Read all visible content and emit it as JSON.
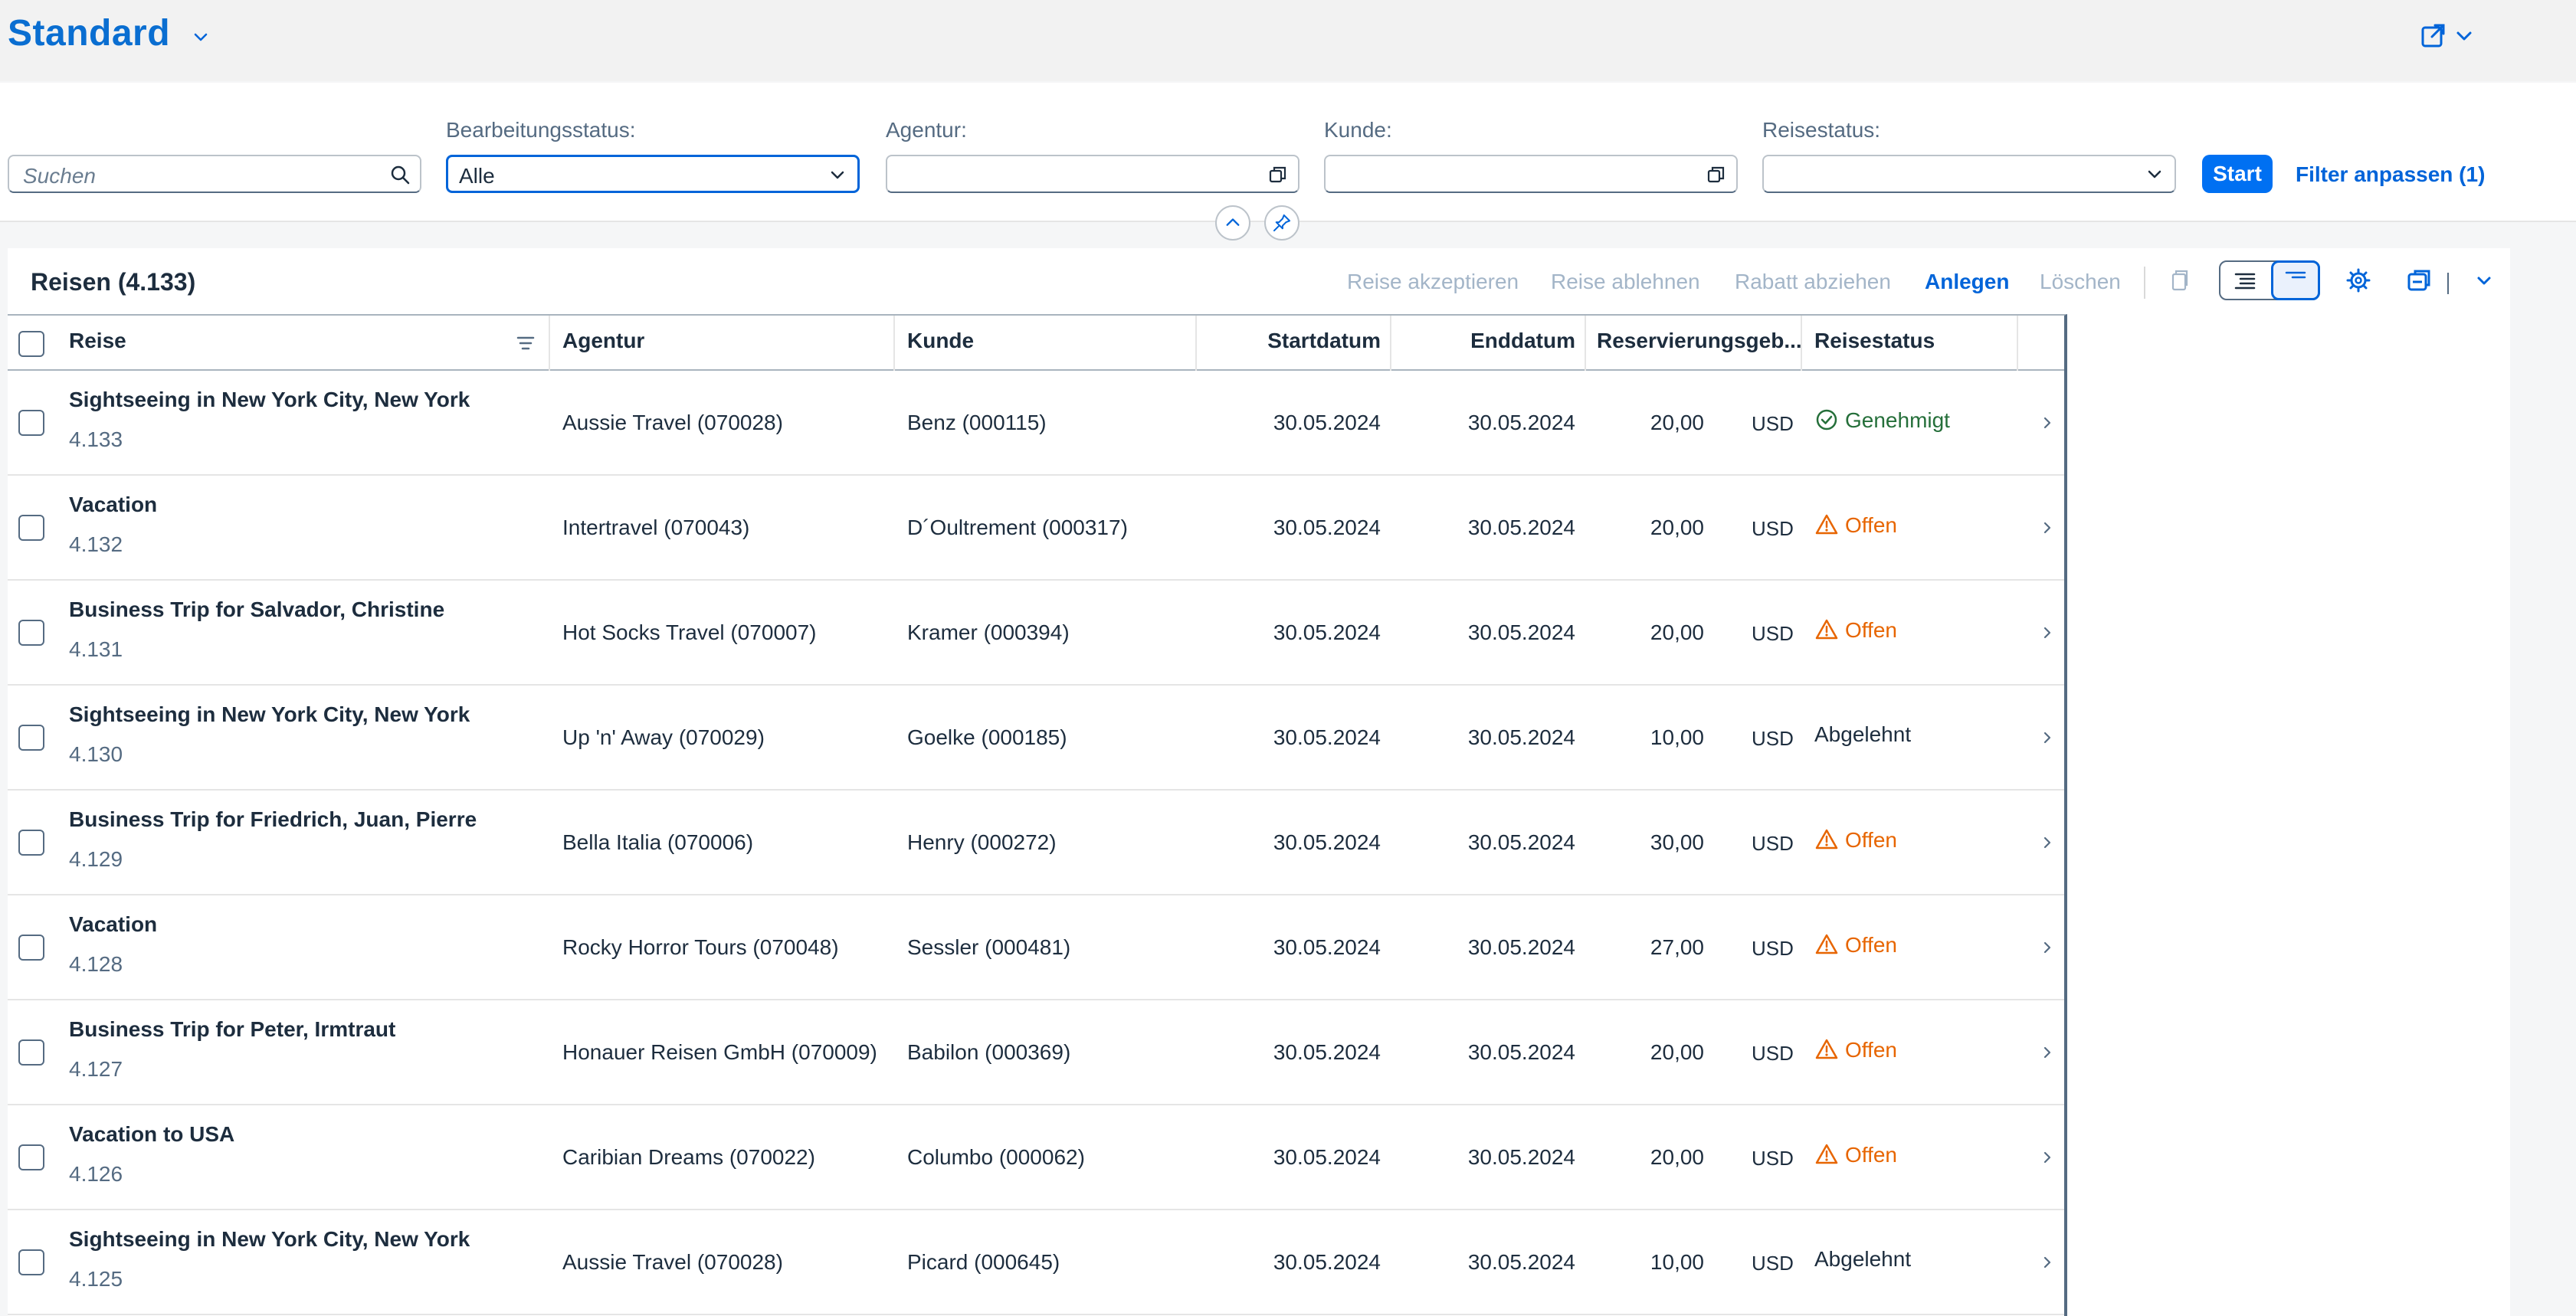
{
  "header": {
    "variant": "Standard"
  },
  "filters": {
    "search_placeholder": "Suchen",
    "edit_status_label": "Bearbeitungsstatus:",
    "edit_status_value": "Alle",
    "agency_label": "Agentur:",
    "customer_label": "Kunde:",
    "travel_status_label": "Reisestatus:",
    "start": "Start",
    "adapt": "Filter anpassen (1)"
  },
  "table": {
    "title": "Reisen (4.133)",
    "toolbar": {
      "accept": "Reise akzeptieren",
      "reject": "Reise ablehnen",
      "discount": "Rabatt abziehen",
      "create": "Anlegen",
      "delete": "Löschen"
    },
    "columns": {
      "reise": "Reise",
      "agentur": "Agentur",
      "kunde": "Kunde",
      "start": "Startdatum",
      "end": "Enddatum",
      "fee": "Reservierungsgeb...",
      "status": "Reisestatus"
    },
    "rows": [
      {
        "title": "Sightseeing in New York City, New York",
        "id": "4.133",
        "agency": "Aussie Travel (070028)",
        "customer": "Benz (000115)",
        "start": "30.05.2024",
        "end": "30.05.2024",
        "fee": "20,00",
        "currency": "USD",
        "status": "Genehmigt"
      },
      {
        "title": "Vacation",
        "id": "4.132",
        "agency": "Intertravel (070043)",
        "customer": "D´Oultrement (000317)",
        "start": "30.05.2024",
        "end": "30.05.2024",
        "fee": "20,00",
        "currency": "USD",
        "status": "Offen"
      },
      {
        "title": "Business Trip for Salvador, Christine",
        "id": "4.131",
        "agency": "Hot Socks Travel (070007)",
        "customer": "Kramer (000394)",
        "start": "30.05.2024",
        "end": "30.05.2024",
        "fee": "20,00",
        "currency": "USD",
        "status": "Offen"
      },
      {
        "title": "Sightseeing in New York City, New York",
        "id": "4.130",
        "agency": "Up 'n' Away (070029)",
        "customer": "Goelke (000185)",
        "start": "30.05.2024",
        "end": "30.05.2024",
        "fee": "10,00",
        "currency": "USD",
        "status": "Abgelehnt"
      },
      {
        "title": "Business Trip for Friedrich, Juan, Pierre",
        "id": "4.129",
        "agency": "Bella Italia (070006)",
        "customer": "Henry (000272)",
        "start": "30.05.2024",
        "end": "30.05.2024",
        "fee": "30,00",
        "currency": "USD",
        "status": "Offen"
      },
      {
        "title": "Vacation",
        "id": "4.128",
        "agency": "Rocky Horror Tours (070048)",
        "customer": "Sessler (000481)",
        "start": "30.05.2024",
        "end": "30.05.2024",
        "fee": "27,00",
        "currency": "USD",
        "status": "Offen"
      },
      {
        "title": "Business Trip for Peter, Irmtraut",
        "id": "4.127",
        "agency": "Honauer Reisen GmbH (070009)",
        "customer": "Babilon (000369)",
        "start": "30.05.2024",
        "end": "30.05.2024",
        "fee": "20,00",
        "currency": "USD",
        "status": "Offen"
      },
      {
        "title": "Vacation to USA",
        "id": "4.126",
        "agency": "Caribian Dreams (070022)",
        "customer": "Columbo (000062)",
        "start": "30.05.2024",
        "end": "30.05.2024",
        "fee": "20,00",
        "currency": "USD",
        "status": "Offen"
      },
      {
        "title": "Sightseeing in New York City, New York",
        "id": "4.125",
        "agency": "Aussie Travel (070028)",
        "customer": "Picard (000645)",
        "start": "30.05.2024",
        "end": "30.05.2024",
        "fee": "10,00",
        "currency": "USD",
        "status": "Abgelehnt"
      }
    ]
  }
}
